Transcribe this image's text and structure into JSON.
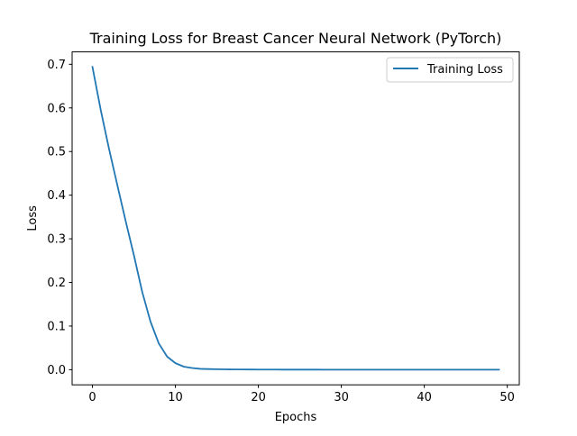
{
  "chart_data": {
    "type": "line",
    "title": "Training Loss for Breast Cancer Neural Network (PyTorch)",
    "xlabel": "Epochs",
    "ylabel": "Loss",
    "xlim": [
      -2.45,
      51.45
    ],
    "ylim": [
      -0.0347,
      0.7284
    ],
    "xticks": [
      0,
      10,
      20,
      30,
      40,
      50
    ],
    "yticks": [
      0.0,
      0.1,
      0.2,
      0.3,
      0.4,
      0.5,
      0.6,
      0.7
    ],
    "xtick_labels": [
      "0",
      "10",
      "20",
      "30",
      "40",
      "50"
    ],
    "ytick_labels": [
      "0.0",
      "0.1",
      "0.2",
      "0.3",
      "0.4",
      "0.5",
      "0.6",
      "0.7"
    ],
    "grid": false,
    "legend_position": "upper right",
    "series": [
      {
        "name": "Training Loss",
        "color": "#1f77b4",
        "x": [
          0,
          1,
          2,
          3,
          4,
          5,
          6,
          7,
          8,
          9,
          10,
          11,
          12,
          13,
          14,
          15,
          16,
          17,
          18,
          19,
          20,
          21,
          22,
          23,
          24,
          25,
          26,
          27,
          28,
          29,
          30,
          31,
          32,
          33,
          34,
          35,
          36,
          37,
          38,
          39,
          40,
          41,
          42,
          43,
          44,
          45,
          46,
          47,
          48,
          49
        ],
        "values": [
          0.694,
          0.595,
          0.506,
          0.423,
          0.341,
          0.262,
          0.178,
          0.11,
          0.06,
          0.03,
          0.015,
          0.007,
          0.004,
          0.002,
          0.0015,
          0.001,
          0.0008,
          0.0006,
          0.0005,
          0.0004,
          0.0003,
          0.0003,
          0.0003,
          0.0002,
          0.0002,
          0.0002,
          0.0002,
          0.0002,
          0.0001,
          0.0001,
          0.0001,
          0.0001,
          0.0001,
          0.0001,
          0.0001,
          0.0001,
          0.0001,
          0.0001,
          0.0001,
          0.0001,
          0.0001,
          0.0001,
          0.0001,
          0.0001,
          0.0001,
          0.0001,
          0.0001,
          0.0001,
          0.0001,
          0.0001
        ]
      }
    ]
  }
}
